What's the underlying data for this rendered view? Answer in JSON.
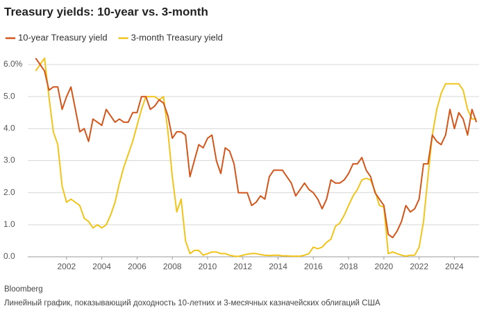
{
  "chart_data": {
    "type": "line",
    "title": "Treasury yields: 10-year vs. 3-month",
    "source": "Bloomberg",
    "description": "Линейный график, показывающий доходность 10-летних и 3-месячных казначейских облигаций США",
    "x": [
      2000.25,
      2000.5,
      2000.75,
      2001,
      2001.25,
      2001.5,
      2001.75,
      2002,
      2002.25,
      2002.5,
      2002.75,
      2003,
      2003.25,
      2003.5,
      2003.75,
      2004,
      2004.25,
      2004.5,
      2004.75,
      2005,
      2005.25,
      2005.5,
      2005.75,
      2006,
      2006.25,
      2006.5,
      2006.75,
      2007,
      2007.25,
      2007.5,
      2007.75,
      2008,
      2008.25,
      2008.5,
      2008.75,
      2009,
      2009.25,
      2009.5,
      2009.75,
      2010,
      2010.25,
      2010.5,
      2010.75,
      2011,
      2011.25,
      2011.5,
      2011.75,
      2012,
      2012.25,
      2012.5,
      2012.75,
      2013,
      2013.25,
      2013.5,
      2013.75,
      2014,
      2014.25,
      2014.5,
      2014.75,
      2015,
      2015.25,
      2015.5,
      2015.75,
      2016,
      2016.25,
      2016.5,
      2016.75,
      2017,
      2017.25,
      2017.5,
      2017.75,
      2018,
      2018.25,
      2018.5,
      2018.75,
      2019,
      2019.25,
      2019.5,
      2019.75,
      2020,
      2020.25,
      2020.5,
      2020.75,
      2021,
      2021.25,
      2021.5,
      2021.75,
      2022,
      2022.25,
      2022.5,
      2022.75,
      2023,
      2023.25,
      2023.5,
      2023.75,
      2024,
      2024.25,
      2024.5,
      2024.75,
      2025,
      2025.25
    ],
    "series": [
      {
        "name": "10-year Treasury yield",
        "color": "#d2561b",
        "values": [
          6.2,
          6.0,
          5.8,
          5.2,
          5.3,
          5.3,
          4.6,
          5.0,
          5.3,
          4.6,
          3.9,
          4.0,
          3.6,
          4.3,
          4.2,
          4.1,
          4.6,
          4.4,
          4.2,
          4.3,
          4.2,
          4.2,
          4.5,
          4.5,
          5.0,
          5.0,
          4.6,
          4.7,
          4.9,
          4.8,
          4.4,
          3.7,
          3.9,
          3.9,
          3.8,
          2.5,
          3.0,
          3.5,
          3.4,
          3.7,
          3.8,
          3.0,
          2.6,
          3.4,
          3.3,
          2.9,
          2.0,
          2.0,
          2.0,
          1.6,
          1.7,
          1.9,
          1.8,
          2.5,
          2.7,
          2.7,
          2.7,
          2.5,
          2.3,
          1.9,
          2.1,
          2.3,
          2.1,
          2.0,
          1.8,
          1.5,
          1.8,
          2.4,
          2.3,
          2.3,
          2.4,
          2.6,
          2.9,
          2.9,
          3.1,
          2.7,
          2.5,
          2.0,
          1.8,
          1.6,
          0.7,
          0.6,
          0.8,
          1.1,
          1.6,
          1.4,
          1.5,
          1.8,
          2.9,
          2.9,
          3.8,
          3.6,
          3.5,
          3.8,
          4.6,
          4.0,
          4.5,
          4.3,
          3.8,
          4.6,
          4.2
        ]
      },
      {
        "name": "3-month Treasury yield",
        "color": "#f0c41b",
        "values": [
          5.8,
          6.0,
          6.2,
          5.0,
          3.9,
          3.5,
          2.2,
          1.7,
          1.8,
          1.7,
          1.6,
          1.2,
          1.1,
          0.9,
          1.0,
          0.9,
          1.0,
          1.3,
          1.7,
          2.3,
          2.8,
          3.2,
          3.6,
          4.1,
          4.6,
          5.0,
          5.0,
          5.0,
          4.9,
          5.0,
          3.9,
          2.5,
          1.4,
          1.8,
          0.5,
          0.1,
          0.2,
          0.2,
          0.05,
          0.1,
          0.15,
          0.15,
          0.1,
          0.1,
          0.05,
          0.02,
          0.01,
          0.05,
          0.08,
          0.1,
          0.1,
          0.07,
          0.05,
          0.04,
          0.05,
          0.05,
          0.03,
          0.03,
          0.02,
          0.02,
          0.02,
          0.05,
          0.1,
          0.3,
          0.25,
          0.3,
          0.45,
          0.55,
          0.95,
          1.05,
          1.3,
          1.6,
          1.9,
          2.1,
          2.4,
          2.45,
          2.4,
          2.05,
          1.6,
          1.55,
          0.1,
          0.15,
          0.1,
          0.05,
          0.02,
          0.05,
          0.05,
          0.3,
          1.1,
          2.5,
          3.8,
          4.6,
          5.1,
          5.4,
          5.4,
          5.4,
          5.4,
          5.2,
          4.6,
          4.3,
          4.3
        ]
      }
    ],
    "xlim": [
      1999.8,
      2025.4
    ],
    "ylim": [
      0,
      6
    ],
    "xticks": [
      2002,
      2004,
      2006,
      2008,
      2010,
      2012,
      2014,
      2016,
      2018,
      2020,
      2022,
      2024
    ],
    "yticks": [
      {
        "value": 0,
        "label": "0.0"
      },
      {
        "value": 1,
        "label": "1.0"
      },
      {
        "value": 2,
        "label": "2.0"
      },
      {
        "value": 3,
        "label": "3.0"
      },
      {
        "value": 4,
        "label": "4.0"
      },
      {
        "value": 5,
        "label": "5.0"
      },
      {
        "value": 6,
        "label": "6.0%"
      }
    ],
    "grid": true
  }
}
